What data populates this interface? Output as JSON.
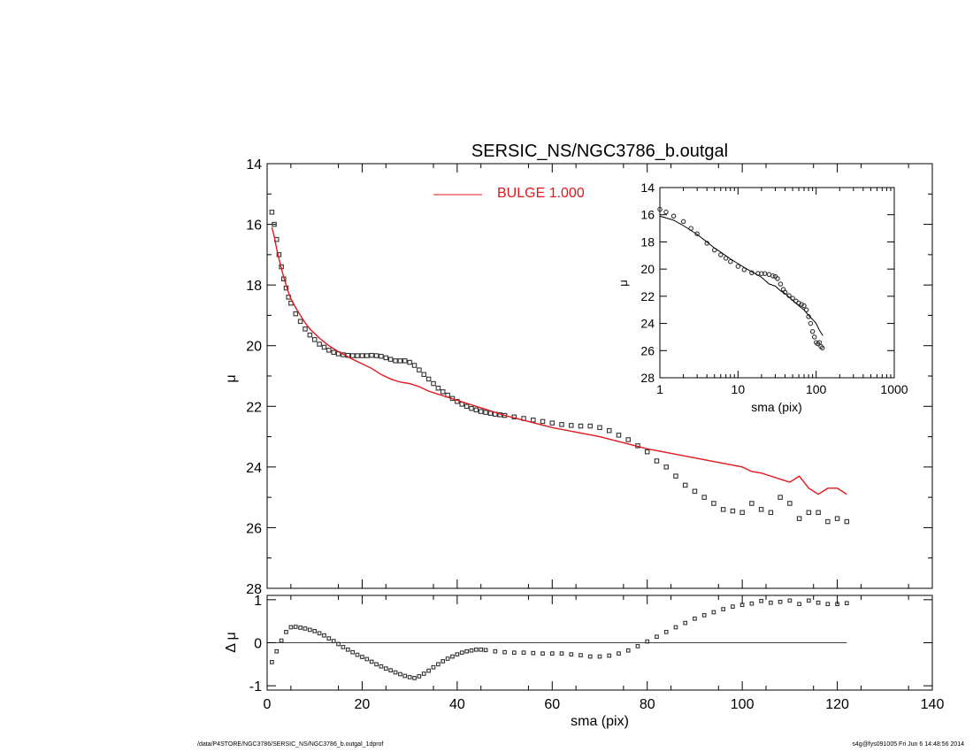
{
  "footer": {
    "path": "/data/P4STORE/NGC3786/SERSIC_NS/NGC3786_b.outgal_1dprof",
    "stamp": "s4g@fys091005  Fri Jun  6 14:48:56 2014"
  },
  "colors": {
    "axes": "#000000",
    "model": "#e0181c",
    "points": "#333333"
  },
  "chart_data": [
    {
      "panel": "main",
      "type": "scatter",
      "title": "SERSIC_NS/NGC3786_b.outgal",
      "xlabel": "",
      "ylabel": "μ",
      "xlim": [
        0,
        140
      ],
      "ylim": [
        28,
        14
      ],
      "x_ticks": [
        0,
        20,
        40,
        60,
        80,
        100,
        120,
        140
      ],
      "y_ticks": [
        14,
        16,
        18,
        20,
        22,
        24,
        26,
        28
      ],
      "y_tick_labels": [
        "14",
        "16",
        "18",
        "20",
        "22",
        "24",
        "26",
        "28"
      ],
      "legend": {
        "placement": "top-center",
        "entries": [
          "BULGE  1.000"
        ]
      },
      "series": [
        {
          "name": "data",
          "kind": "points",
          "x": [
            1,
            1.5,
            2,
            2.5,
            3,
            3.5,
            4,
            4.5,
            5,
            6,
            7,
            8,
            9,
            10,
            11,
            12,
            13,
            14,
            15,
            16,
            17,
            18,
            19,
            20,
            21,
            22,
            23,
            24,
            25,
            26,
            27,
            28,
            29,
            30,
            31,
            32,
            33,
            34,
            35,
            36,
            37,
            38,
            39,
            40,
            41,
            42,
            43,
            44,
            45,
            46,
            47,
            48,
            49,
            50,
            52,
            54,
            56,
            58,
            60,
            62,
            64,
            66,
            68,
            70,
            72,
            74,
            76,
            78,
            80,
            82,
            84,
            86,
            88,
            90,
            92,
            94,
            96,
            98,
            100,
            102,
            104,
            106,
            108,
            110,
            112,
            114,
            116,
            118,
            120,
            122
          ],
          "y": [
            15.6,
            16.0,
            16.5,
            17.0,
            17.4,
            17.8,
            18.1,
            18.4,
            18.6,
            18.95,
            19.2,
            19.45,
            19.65,
            19.8,
            19.95,
            20.05,
            20.15,
            20.22,
            20.27,
            20.3,
            20.32,
            20.33,
            20.33,
            20.33,
            20.33,
            20.32,
            20.33,
            20.35,
            20.4,
            20.45,
            20.5,
            20.5,
            20.5,
            20.55,
            20.65,
            20.8,
            20.95,
            21.1,
            21.25,
            21.4,
            21.52,
            21.63,
            21.74,
            21.84,
            21.93,
            22.0,
            22.07,
            22.12,
            22.17,
            22.2,
            22.23,
            22.26,
            22.28,
            22.3,
            22.35,
            22.4,
            22.45,
            22.5,
            22.55,
            22.6,
            22.63,
            22.65,
            22.65,
            22.7,
            22.8,
            22.95,
            23.1,
            23.3,
            23.5,
            23.8,
            24.0,
            24.3,
            24.6,
            24.8,
            25.0,
            25.2,
            25.4,
            25.45,
            25.5,
            25.2,
            25.4,
            25.5,
            25.0,
            25.2,
            25.7,
            25.5,
            25.5,
            25.8,
            25.7,
            25.8
          ]
        },
        {
          "name": "BULGE  1.000",
          "kind": "line",
          "x": [
            1,
            1.5,
            2,
            2.5,
            3,
            3.5,
            4,
            4.5,
            5,
            6,
            7,
            8,
            9,
            10,
            11,
            12,
            13,
            14,
            15,
            16,
            18,
            20,
            22,
            24,
            26,
            28,
            30,
            32,
            34,
            36,
            38,
            40,
            42,
            44,
            46,
            48,
            50,
            55,
            60,
            65,
            70,
            75,
            80,
            85,
            90,
            95,
            100,
            102,
            104,
            106,
            108,
            110,
            112,
            114,
            116,
            118,
            120,
            122
          ],
          "y": [
            16.1,
            16.4,
            16.8,
            17.15,
            17.45,
            17.75,
            18.0,
            18.25,
            18.45,
            18.75,
            19.0,
            19.25,
            19.45,
            19.6,
            19.75,
            19.88,
            20.0,
            20.1,
            20.2,
            20.28,
            20.45,
            20.6,
            20.75,
            20.95,
            21.1,
            21.2,
            21.25,
            21.35,
            21.5,
            21.6,
            21.7,
            21.8,
            21.9,
            22.0,
            22.1,
            22.2,
            22.3,
            22.5,
            22.7,
            22.85,
            23.0,
            23.2,
            23.4,
            23.55,
            23.7,
            23.85,
            24.0,
            24.15,
            24.2,
            24.3,
            24.4,
            24.5,
            24.3,
            24.7,
            24.9,
            24.7,
            24.7,
            24.9
          ]
        }
      ]
    },
    {
      "panel": "residual",
      "type": "scatter",
      "xlabel": "sma (pix)",
      "ylabel": "Δ μ",
      "xlim": [
        0,
        140
      ],
      "ylim": [
        -1.1,
        1.1
      ],
      "x_ticks": [
        0,
        20,
        40,
        60,
        80,
        100,
        120,
        140
      ],
      "x_tick_labels": [
        "0",
        "20",
        "40",
        "60",
        "80",
        "100",
        "120",
        "140"
      ],
      "y_ticks": [
        -1,
        0,
        1
      ],
      "y_tick_labels": [
        "-1",
        "0",
        "1"
      ],
      "zero_line": true,
      "series": [
        {
          "name": "residual",
          "kind": "points",
          "x": [
            1,
            2,
            3,
            4,
            5,
            6,
            7,
            8,
            9,
            10,
            11,
            12,
            13,
            14,
            15,
            16,
            17,
            18,
            19,
            20,
            21,
            22,
            23,
            24,
            25,
            26,
            27,
            28,
            29,
            30,
            31,
            32,
            33,
            34,
            35,
            36,
            37,
            38,
            39,
            40,
            41,
            42,
            43,
            44,
            45,
            46,
            48,
            50,
            52,
            54,
            56,
            58,
            60,
            62,
            64,
            66,
            68,
            70,
            72,
            74,
            76,
            78,
            80,
            82,
            84,
            86,
            88,
            90,
            92,
            94,
            96,
            98,
            100,
            102,
            104,
            106,
            108,
            110,
            112,
            114,
            116,
            118,
            120,
            122
          ],
          "y": [
            -0.45,
            -0.2,
            0.05,
            0.25,
            0.36,
            0.37,
            0.35,
            0.33,
            0.3,
            0.27,
            0.22,
            0.17,
            0.1,
            0.04,
            -0.03,
            -0.1,
            -0.16,
            -0.22,
            -0.28,
            -0.33,
            -0.38,
            -0.44,
            -0.5,
            -0.55,
            -0.6,
            -0.64,
            -0.69,
            -0.73,
            -0.77,
            -0.8,
            -0.82,
            -0.78,
            -0.72,
            -0.65,
            -0.57,
            -0.5,
            -0.43,
            -0.37,
            -0.32,
            -0.27,
            -0.23,
            -0.2,
            -0.18,
            -0.16,
            -0.16,
            -0.17,
            -0.2,
            -0.22,
            -0.23,
            -0.23,
            -0.24,
            -0.25,
            -0.25,
            -0.25,
            -0.27,
            -0.29,
            -0.32,
            -0.32,
            -0.3,
            -0.25,
            -0.18,
            -0.08,
            0.03,
            0.14,
            0.25,
            0.36,
            0.46,
            0.56,
            0.64,
            0.71,
            0.78,
            0.84,
            0.88,
            0.91,
            0.97,
            0.93,
            0.95,
            0.98,
            0.9,
            0.98,
            0.93,
            0.9,
            0.9,
            0.92
          ]
        }
      ]
    },
    {
      "panel": "inset",
      "type": "line",
      "xlabel": "sma (pix)",
      "ylabel": "μ",
      "xscale": "log",
      "xlim": [
        1,
        1000
      ],
      "ylim": [
        28,
        14
      ],
      "x_ticks": [
        1,
        10,
        100,
        1000
      ],
      "x_tick_labels": [
        "1",
        "10",
        "100",
        "1000"
      ],
      "y_ticks": [
        14,
        16,
        18,
        20,
        22,
        24,
        26,
        28
      ],
      "y_tick_labels": [
        "14",
        "16",
        "18",
        "20",
        "22",
        "24",
        "26",
        "28"
      ],
      "series": [
        {
          "name": "data",
          "kind": "points",
          "x": [
            1,
            1.2,
            1.5,
            2,
            2.5,
            3,
            4,
            5,
            6,
            7,
            8,
            10,
            12,
            15,
            18,
            20,
            22,
            25,
            28,
            30,
            32,
            35,
            38,
            40,
            45,
            50,
            55,
            60,
            65,
            70,
            75,
            80,
            85,
            90,
            95,
            100,
            105,
            110,
            115,
            120
          ],
          "y": [
            15.6,
            15.8,
            16.1,
            16.5,
            17.0,
            17.4,
            18.1,
            18.6,
            18.95,
            19.2,
            19.45,
            19.8,
            20.05,
            20.27,
            20.32,
            20.33,
            20.33,
            20.4,
            20.5,
            20.55,
            20.7,
            21.1,
            21.5,
            21.7,
            21.95,
            22.15,
            22.35,
            22.5,
            22.6,
            22.7,
            23.0,
            23.5,
            24.0,
            24.6,
            25.0,
            25.4,
            25.5,
            25.4,
            25.7,
            25.8
          ]
        },
        {
          "name": "model",
          "kind": "line",
          "x": [
            1,
            1.5,
            2,
            3,
            4,
            5,
            6,
            8,
            10,
            12,
            15,
            18,
            20,
            25,
            30,
            35,
            40,
            50,
            60,
            70,
            80,
            90,
            100,
            110,
            122
          ],
          "y": [
            16.1,
            16.4,
            16.8,
            17.45,
            18.0,
            18.45,
            18.75,
            19.25,
            19.6,
            19.88,
            20.2,
            20.45,
            20.6,
            21.1,
            21.25,
            21.6,
            21.8,
            22.3,
            22.7,
            23.0,
            23.4,
            23.7,
            24.0,
            24.5,
            24.9
          ]
        }
      ]
    }
  ]
}
